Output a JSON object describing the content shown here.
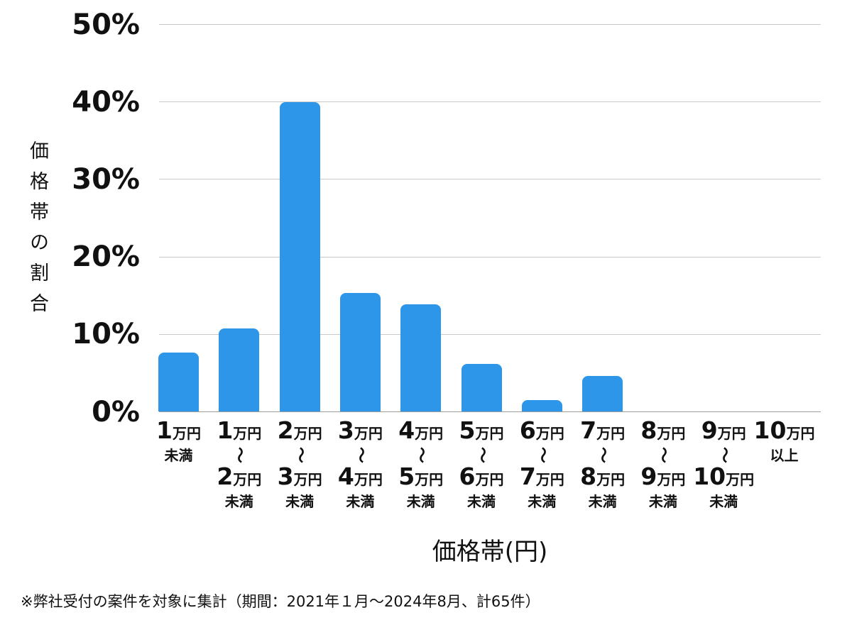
{
  "chart_data": {
    "type": "bar",
    "title": "",
    "ylabel": "価格帯の割合",
    "xlabel": "価格帯(円)",
    "ylim": [
      0,
      50
    ],
    "ytick_step": 10,
    "ytick_labels": [
      "0%",
      "10%",
      "20%",
      "30%",
      "40%",
      "50%"
    ],
    "grid": true,
    "legend": false,
    "categories": [
      "1万円未満",
      "1万円〜2万円未満",
      "2万円〜3万円未満",
      "3万円〜4万円未満",
      "4万円〜5万円未満",
      "5万円〜6万円未満",
      "6万円〜7万円未満",
      "7万円〜8万円未満",
      "8万円〜9万円未満",
      "9万円〜10万円未満",
      "10万円以上"
    ],
    "categories_lines": [
      [
        "1万円",
        "未満"
      ],
      [
        "1万円",
        "〜",
        "2万円",
        "未満"
      ],
      [
        "2万円",
        "〜",
        "3万円",
        "未満"
      ],
      [
        "3万円",
        "〜",
        "4万円",
        "未満"
      ],
      [
        "4万円",
        "〜",
        "5万円",
        "未満"
      ],
      [
        "5万円",
        "〜",
        "6万円",
        "未満"
      ],
      [
        "6万円",
        "〜",
        "7万円",
        "未満"
      ],
      [
        "7万円",
        "〜",
        "8万円",
        "未満"
      ],
      [
        "8万円",
        "〜",
        "9万円",
        "未満"
      ],
      [
        "9万円",
        "〜",
        "10万円",
        "未満"
      ],
      [
        "10万円",
        "以上"
      ]
    ],
    "values": [
      7.69,
      10.77,
      40.0,
      15.38,
      13.85,
      6.15,
      1.54,
      4.62,
      0,
      0,
      0
    ]
  },
  "footnote": "※弊社受付の案件を対象に集計（期間：2021年１月～2024年8月、計65件）",
  "colors": {
    "bar": "#2D96E8",
    "gridline": "#C9C9C9",
    "baseline": "#9E9E9E",
    "text": "#111111"
  }
}
